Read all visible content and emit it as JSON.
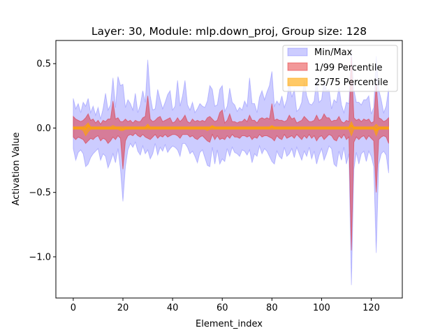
{
  "chart_data": {
    "type": "area",
    "title": "Layer: 30, Module: mlp.down_proj,  Group size: 128",
    "xlabel": "Element_index",
    "ylabel": "Activation Value",
    "xlim": [
      -7,
      132.5
    ],
    "ylim": [
      -1.32,
      0.68
    ],
    "xticks": [
      0,
      20,
      40,
      60,
      80,
      100,
      120
    ],
    "xtick_labels": [
      "0",
      "20",
      "40",
      "60",
      "80",
      "100",
      "120"
    ],
    "yticks": [
      -1.0,
      -0.5,
      0.0,
      0.5
    ],
    "ytick_labels": [
      "−1.0",
      "−0.5",
      "0.0",
      "0.5"
    ],
    "grid": false,
    "legend_position": "top-right",
    "colors": {
      "minmax": "#0000ff",
      "p1_99": "#e31a1c",
      "p25_75": "#ffa500",
      "median": "#ffa500"
    },
    "series": [
      {
        "name": "Min/Max",
        "upper": [
          0.23,
          0.15,
          0.19,
          0.12,
          0.2,
          0.17,
          0.23,
          0.12,
          0.17,
          0.1,
          0.16,
          0.07,
          0.15,
          0.27,
          0.14,
          0.18,
          0.39,
          0.16,
          0.4,
          0.33,
          0.34,
          0.16,
          0.22,
          0.19,
          0.14,
          0.27,
          0.12,
          0.18,
          0.29,
          0.2,
          0.53,
          0.25,
          0.14,
          0.15,
          0.3,
          0.22,
          0.15,
          0.2,
          0.26,
          0.29,
          0.14,
          0.17,
          0.37,
          0.17,
          0.25,
          0.37,
          0.18,
          0.14,
          0.2,
          0.12,
          0.15,
          0.19,
          0.17,
          0.16,
          0.21,
          0.33,
          0.3,
          0.17,
          0.18,
          0.3,
          0.33,
          0.13,
          0.17,
          0.31,
          0.2,
          0.18,
          0.13,
          0.16,
          0.14,
          0.21,
          0.17,
          0.39,
          0.19,
          0.19,
          0.12,
          0.24,
          0.29,
          0.22,
          0.28,
          0.33,
          0.44,
          0.17,
          0.21,
          0.18,
          0.25,
          0.16,
          0.22,
          0.36,
          0.24,
          0.3,
          0.13,
          0.15,
          0.2,
          0.37,
          0.25,
          0.19,
          0.18,
          0.21,
          0.38,
          0.2,
          0.22,
          0.37,
          0.29,
          0.3,
          0.15,
          0.22,
          0.2,
          0.32,
          0.18,
          0.12,
          0.2,
          0.19,
          0.6,
          0.3,
          0.2,
          0.2,
          0.18,
          0.22,
          0.22,
          0.25,
          0.11,
          0.16,
          0.56,
          0.3,
          0.22,
          0.12,
          0.17,
          0.31
        ],
        "lower": [
          -0.16,
          -0.25,
          -0.19,
          -0.17,
          -0.2,
          -0.3,
          -0.28,
          -0.23,
          -0.2,
          -0.18,
          -0.16,
          -0.25,
          -0.2,
          -0.22,
          -0.31,
          -0.26,
          -0.2,
          -0.27,
          -0.16,
          -0.32,
          -0.57,
          -0.3,
          -0.17,
          -0.12,
          -0.15,
          -0.11,
          -0.18,
          -0.21,
          -0.14,
          -0.2,
          -0.17,
          -0.24,
          -0.2,
          -0.12,
          -0.21,
          -0.15,
          -0.18,
          -0.13,
          -0.19,
          -0.16,
          -0.14,
          -0.15,
          -0.17,
          -0.22,
          -0.12,
          -0.12,
          -0.15,
          -0.2,
          -0.18,
          -0.22,
          -0.27,
          -0.19,
          -0.17,
          -0.23,
          -0.29,
          -0.3,
          -0.15,
          -0.28,
          -0.17,
          -0.28,
          -0.24,
          -0.26,
          -0.16,
          -0.22,
          -0.15,
          -0.19,
          -0.2,
          -0.22,
          -0.17,
          -0.18,
          -0.21,
          -0.17,
          -0.27,
          -0.2,
          -0.22,
          -0.14,
          -0.2,
          -0.16,
          -0.18,
          -0.22,
          -0.26,
          -0.28,
          -0.18,
          -0.22,
          -0.24,
          -0.15,
          -0.22,
          -0.2,
          -0.16,
          -0.23,
          -0.15,
          -0.2,
          -0.25,
          -0.18,
          -0.22,
          -0.15,
          -0.24,
          -0.18,
          -0.28,
          -0.21,
          -0.16,
          -0.25,
          -0.2,
          -0.14,
          -0.16,
          -0.28,
          -0.3,
          -0.18,
          -0.25,
          -0.15,
          -0.28,
          -0.2,
          -1.22,
          -0.32,
          -0.19,
          -0.28,
          -0.2,
          -0.18,
          -0.26,
          -0.18,
          -0.22,
          -0.3,
          -0.97,
          -0.28,
          -0.2,
          -0.18,
          -0.21,
          -0.35
        ]
      },
      {
        "name": "1/99 Percentile",
        "upper": [
          0.09,
          0.07,
          0.06,
          0.05,
          0.06,
          0.08,
          0.11,
          0.06,
          0.07,
          0.04,
          0.06,
          0.03,
          0.06,
          0.05,
          0.07,
          0.07,
          0.21,
          0.07,
          0.08,
          0.05,
          0.05,
          0.07,
          0.05,
          0.06,
          0.04,
          0.06,
          0.05,
          0.05,
          0.08,
          0.09,
          0.25,
          0.07,
          0.05,
          0.06,
          0.08,
          0.09,
          0.05,
          0.06,
          0.07,
          0.08,
          0.04,
          0.05,
          0.08,
          0.05,
          0.07,
          0.1,
          0.05,
          0.04,
          0.07,
          0.05,
          0.06,
          0.05,
          0.06,
          0.05,
          0.08,
          0.09,
          0.07,
          0.05,
          0.06,
          0.12,
          0.14,
          0.04,
          0.06,
          0.11,
          0.05,
          0.05,
          0.04,
          0.05,
          0.05,
          0.07,
          0.05,
          0.1,
          0.06,
          0.06,
          0.04,
          0.07,
          0.08,
          0.07,
          0.08,
          0.07,
          0.19,
          0.06,
          0.07,
          0.06,
          0.06,
          0.05,
          0.06,
          0.1,
          0.07,
          0.08,
          0.04,
          0.05,
          0.06,
          0.09,
          0.07,
          0.05,
          0.05,
          0.06,
          0.1,
          0.06,
          0.07,
          0.11,
          0.08,
          0.08,
          0.05,
          0.06,
          0.06,
          0.09,
          0.05,
          0.04,
          0.06,
          0.05,
          0.55,
          0.08,
          0.06,
          0.07,
          0.05,
          0.07,
          0.06,
          0.07,
          0.04,
          0.05,
          0.35,
          0.08,
          0.07,
          0.05,
          0.06,
          0.08
        ],
        "lower": [
          -0.07,
          -0.09,
          -0.07,
          -0.08,
          -0.09,
          -0.12,
          -0.1,
          -0.08,
          -0.09,
          -0.07,
          -0.06,
          -0.1,
          -0.08,
          -0.09,
          -0.12,
          -0.1,
          -0.07,
          -0.09,
          -0.06,
          -0.08,
          -0.32,
          -0.1,
          -0.06,
          -0.05,
          -0.06,
          -0.04,
          -0.06,
          -0.07,
          -0.05,
          -0.07,
          -0.08,
          -0.09,
          -0.07,
          -0.05,
          -0.08,
          -0.06,
          -0.07,
          -0.05,
          -0.07,
          -0.06,
          -0.05,
          -0.05,
          -0.06,
          -0.08,
          -0.05,
          -0.05,
          -0.05,
          -0.07,
          -0.06,
          -0.08,
          -0.09,
          -0.07,
          -0.06,
          -0.08,
          -0.1,
          -0.11,
          -0.05,
          -0.09,
          -0.06,
          -0.09,
          -0.08,
          -0.09,
          -0.06,
          -0.08,
          -0.05,
          -0.07,
          -0.07,
          -0.08,
          -0.06,
          -0.06,
          -0.07,
          -0.06,
          -0.09,
          -0.07,
          -0.08,
          -0.05,
          -0.07,
          -0.06,
          -0.06,
          -0.07,
          -0.08,
          -0.1,
          -0.06,
          -0.08,
          -0.09,
          -0.05,
          -0.08,
          -0.07,
          -0.06,
          -0.08,
          -0.05,
          -0.07,
          -0.09,
          -0.06,
          -0.08,
          -0.05,
          -0.08,
          -0.06,
          -0.1,
          -0.07,
          -0.06,
          -0.09,
          -0.07,
          -0.05,
          -0.06,
          -0.09,
          -0.1,
          -0.06,
          -0.08,
          -0.05,
          -0.09,
          -0.07,
          -0.95,
          -0.11,
          -0.07,
          -0.09,
          -0.07,
          -0.06,
          -0.09,
          -0.06,
          -0.08,
          -0.1,
          -0.5,
          -0.09,
          -0.07,
          -0.06,
          -0.07,
          -0.12
        ]
      },
      {
        "name": "25/75 Percentile",
        "upper": [
          0.01,
          0.01,
          0.01,
          0.01,
          0.01,
          0.02,
          0.04,
          0.01,
          0.01,
          0.01,
          0.01,
          0.01,
          0.01,
          0.01,
          0.01,
          0.01,
          0.02,
          0.01,
          0.01,
          0.01,
          0.01,
          0.01,
          0.01,
          0.01,
          0.01,
          0.01,
          0.01,
          0.01,
          0.01,
          0.01,
          0.03,
          0.01,
          0.01,
          0.01,
          0.01,
          0.01,
          0.01,
          0.01,
          0.01,
          0.01,
          0.01,
          0.01,
          0.01,
          0.01,
          0.01,
          0.01,
          0.01,
          0.01,
          0.01,
          0.01,
          0.01,
          0.01,
          0.01,
          0.01,
          0.01,
          0.01,
          0.02,
          0.01,
          0.01,
          0.01,
          0.01,
          0.01,
          0.01,
          0.01,
          0.01,
          0.01,
          0.01,
          0.01,
          0.01,
          0.01,
          0.01,
          0.01,
          0.01,
          0.01,
          0.01,
          0.01,
          0.01,
          0.01,
          0.01,
          0.01,
          0.02,
          0.01,
          0.01,
          0.01,
          0.01,
          0.01,
          0.01,
          0.01,
          0.01,
          0.01,
          0.01,
          0.01,
          0.01,
          0.01,
          0.01,
          0.01,
          0.01,
          0.01,
          0.01,
          0.01,
          0.01,
          0.01,
          0.01,
          0.01,
          0.01,
          0.01,
          0.01,
          0.01,
          0.01,
          0.01,
          0.01,
          0.01,
          0.05,
          0.01,
          0.01,
          0.01,
          0.01,
          0.01,
          0.01,
          0.01,
          0.01,
          0.01,
          0.03,
          0.01,
          0.01,
          0.01,
          0.01,
          0.01
        ],
        "lower": [
          -0.01,
          -0.01,
          -0.01,
          -0.01,
          -0.02,
          -0.06,
          -0.03,
          -0.01,
          -0.01,
          -0.01,
          -0.01,
          -0.01,
          -0.01,
          -0.01,
          -0.01,
          -0.01,
          -0.01,
          -0.01,
          -0.01,
          -0.02,
          -0.02,
          -0.01,
          -0.01,
          -0.01,
          -0.01,
          -0.01,
          -0.01,
          -0.01,
          -0.01,
          -0.01,
          -0.01,
          -0.01,
          -0.01,
          -0.01,
          -0.01,
          -0.01,
          -0.01,
          -0.01,
          -0.01,
          -0.01,
          -0.01,
          -0.01,
          -0.01,
          -0.01,
          -0.01,
          -0.01,
          -0.01,
          -0.01,
          -0.01,
          -0.01,
          -0.01,
          -0.01,
          -0.01,
          -0.01,
          -0.02,
          -0.01,
          -0.01,
          -0.01,
          -0.01,
          -0.01,
          -0.01,
          -0.01,
          -0.01,
          -0.01,
          -0.01,
          -0.01,
          -0.01,
          -0.01,
          -0.01,
          -0.01,
          -0.01,
          -0.01,
          -0.01,
          -0.01,
          -0.01,
          -0.01,
          -0.01,
          -0.01,
          -0.01,
          -0.01,
          -0.01,
          -0.01,
          -0.01,
          -0.01,
          -0.01,
          -0.01,
          -0.01,
          -0.01,
          -0.01,
          -0.01,
          -0.01,
          -0.01,
          -0.01,
          -0.01,
          -0.01,
          -0.01,
          -0.01,
          -0.01,
          -0.01,
          -0.01,
          -0.01,
          -0.01,
          -0.01,
          -0.01,
          -0.01,
          -0.01,
          -0.01,
          -0.01,
          -0.01,
          -0.01,
          -0.01,
          -0.01,
          -0.06,
          -0.01,
          -0.01,
          -0.01,
          -0.01,
          -0.01,
          -0.01,
          -0.01,
          -0.01,
          -0.01,
          -0.06,
          -0.01,
          -0.01,
          -0.01,
          -0.01,
          -0.01
        ]
      }
    ],
    "median": [
      0,
      0,
      0,
      0,
      0,
      -0.01,
      0.02,
      0,
      0,
      0,
      0,
      0,
      0,
      0,
      0,
      0,
      0,
      0,
      0,
      0,
      -0.01,
      0,
      0,
      0,
      0,
      0,
      0,
      0,
      0,
      0,
      0.01,
      0,
      0,
      0,
      0,
      0,
      0,
      0,
      0,
      0,
      0,
      0,
      0,
      0,
      0,
      0,
      0,
      0,
      0,
      0,
      0,
      0,
      0,
      0,
      0,
      0,
      0.01,
      0,
      0,
      0,
      0,
      0,
      0,
      0,
      0,
      0,
      0,
      0,
      0,
      0,
      0,
      0,
      0,
      0,
      0,
      0,
      0,
      0,
      0,
      0,
      0.01,
      0,
      0,
      0,
      0,
      0,
      0,
      0,
      0,
      0,
      0,
      0,
      0,
      0,
      0,
      0,
      0,
      0,
      0,
      0,
      0,
      0,
      0,
      0,
      0,
      0,
      0,
      0,
      0,
      0,
      0,
      0,
      0.02,
      0,
      0,
      0,
      0,
      0,
      0,
      0,
      0,
      0,
      -0.02,
      0,
      0,
      0,
      0,
      0
    ]
  }
}
